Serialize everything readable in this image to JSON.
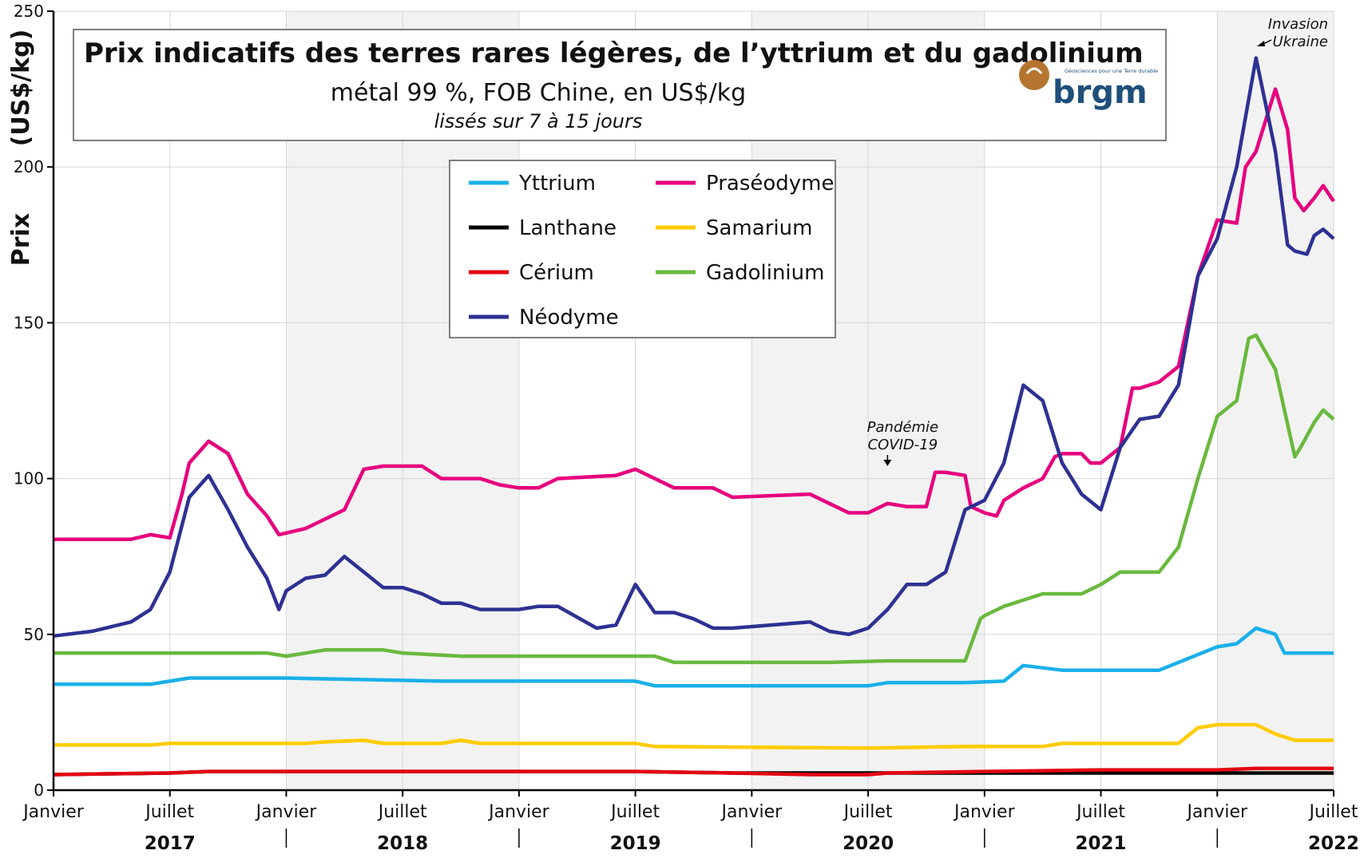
{
  "colors": {
    "Yttrium": "#1ab0ea",
    "Praséodyme": "#e6007e",
    "Lanthane": "#000000",
    "Samarium": "#ffcc00",
    "Cérium": "#e30613",
    "Gadolinium": "#6ab93e",
    "Néodyme": "#2e3192",
    "shade": "#f2f2f2",
    "grid": "#d6d6d6",
    "logo_brown": "#b5752e",
    "logo_blue": "#1d4f7a"
  },
  "logo": {
    "text": "brgm",
    "tagline": "Géosciences pour une Terre durable"
  },
  "chart_data": {
    "type": "line",
    "title": "Prix indicatifs des terres rares légères, de l’yttrium et du gadolinium",
    "subtitle": "métal 99 %, FOB Chine, en US$/kg",
    "note": "lissés sur 7 à 15 jours",
    "ylabel": "Prix",
    "ylabel_unit": "(US$/kg)",
    "ylim": [
      0,
      250
    ],
    "yticks": [
      0,
      50,
      100,
      150,
      200,
      250
    ],
    "xlim": [
      "2017-01",
      "2022-07"
    ],
    "xtick_labels": [
      "Janvier",
      "Juillet",
      "Janvier",
      "Juillet",
      "Janvier",
      "Juillet",
      "Janvier",
      "Juillet",
      "Janvier",
      "Juillet",
      "Janvier",
      "Juillet"
    ],
    "year_labels": [
      "2017",
      "2018",
      "2019",
      "2020",
      "2021",
      "2022"
    ],
    "grid": true,
    "legend_position": "top-center",
    "annotations": [
      {
        "text": [
          "Pandémie",
          "COVID-19"
        ],
        "x": "2020-08"
      },
      {
        "text": [
          "Invasion",
          "Ukraine"
        ],
        "x": "2022-02-24"
      }
    ],
    "series": [
      {
        "name": "Yttrium",
        "points": [
          [
            "2017-01",
            34
          ],
          [
            "2017-06",
            34
          ],
          [
            "2017-07",
            35
          ],
          [
            "2017-08",
            36
          ],
          [
            "2018-01",
            36
          ],
          [
            "2018-09",
            35
          ],
          [
            "2019-07",
            35
          ],
          [
            "2019-08",
            33.5
          ],
          [
            "2020-07",
            33.5
          ],
          [
            "2020-08",
            34.5
          ],
          [
            "2020-12",
            34.5
          ],
          [
            "2021-02",
            35
          ],
          [
            "2021-03",
            40
          ],
          [
            "2021-05",
            38.5
          ],
          [
            "2021-10",
            38.5
          ],
          [
            "2021-11",
            41
          ],
          [
            "2022-01",
            46
          ],
          [
            "2022-02",
            47
          ],
          [
            "2022-03",
            52
          ],
          [
            "2022-04",
            50
          ],
          [
            "2022-04-15",
            44
          ],
          [
            "2022-07",
            44
          ]
        ]
      },
      {
        "name": "Praséodyme",
        "points": [
          [
            "2017-01",
            80.5
          ],
          [
            "2017-05",
            80.5
          ],
          [
            "2017-06",
            82
          ],
          [
            "2017-07",
            81
          ],
          [
            "2017-07-20",
            95
          ],
          [
            "2017-08",
            105
          ],
          [
            "2017-09",
            112
          ],
          [
            "2017-10",
            108
          ],
          [
            "2017-11",
            95
          ],
          [
            "2017-12",
            88
          ],
          [
            "2017-12-20",
            82
          ],
          [
            "2018-02",
            84
          ],
          [
            "2018-03",
            87
          ],
          [
            "2018-04",
            90
          ],
          [
            "2018-05",
            103
          ],
          [
            "2018-06",
            104
          ],
          [
            "2018-08",
            104
          ],
          [
            "2018-09",
            100
          ],
          [
            "2018-11",
            100
          ],
          [
            "2018-12",
            98
          ],
          [
            "2019-01",
            97
          ],
          [
            "2019-02",
            97
          ],
          [
            "2019-03",
            100
          ],
          [
            "2019-06",
            101
          ],
          [
            "2019-07",
            103
          ],
          [
            "2019-09",
            97
          ],
          [
            "2019-11",
            97
          ],
          [
            "2019-12",
            94
          ],
          [
            "2020-04",
            95
          ],
          [
            "2020-05",
            92
          ],
          [
            "2020-06",
            89
          ],
          [
            "2020-07",
            89
          ],
          [
            "2020-08",
            92
          ],
          [
            "2020-09",
            91
          ],
          [
            "2020-10",
            91
          ],
          [
            "2020-10-15",
            102
          ],
          [
            "2020-11",
            102
          ],
          [
            "2020-12",
            101
          ],
          [
            "2020-12-10",
            91
          ],
          [
            "2021-01",
            89
          ],
          [
            "2021-01-20",
            88
          ],
          [
            "2021-02",
            93
          ],
          [
            "2021-03",
            97
          ],
          [
            "2021-04",
            100
          ],
          [
            "2021-04-20",
            107
          ],
          [
            "2021-05",
            108
          ],
          [
            "2021-06",
            108
          ],
          [
            "2021-06-15",
            105
          ],
          [
            "2021-07",
            105
          ],
          [
            "2021-08",
            110
          ],
          [
            "2021-08-20",
            129
          ],
          [
            "2021-09",
            129
          ],
          [
            "2021-10",
            131
          ],
          [
            "2021-11",
            136
          ],
          [
            "2021-12",
            165
          ],
          [
            "2022-01",
            183
          ],
          [
            "2022-02",
            182
          ],
          [
            "2022-02-15",
            200
          ],
          [
            "2022-03",
            205
          ],
          [
            "2022-04",
            225
          ],
          [
            "2022-04-20",
            212
          ],
          [
            "2022-05",
            190
          ],
          [
            "2022-05-15",
            186
          ],
          [
            "2022-06",
            190
          ],
          [
            "2022-06-15",
            194
          ],
          [
            "2022-07",
            189
          ]
        ]
      },
      {
        "name": "Lanthane",
        "points": [
          [
            "2017-01",
            5
          ],
          [
            "2017-07",
            5.5
          ],
          [
            "2017-09",
            6
          ],
          [
            "2017-12",
            6
          ],
          [
            "2018-06",
            6
          ],
          [
            "2019-01",
            6
          ],
          [
            "2019-07",
            6
          ],
          [
            "2019-12",
            5.5
          ],
          [
            "2020-12",
            5.5
          ],
          [
            "2022-07",
            5.5
          ]
        ]
      },
      {
        "name": "Samarium",
        "points": [
          [
            "2017-01",
            14.5
          ],
          [
            "2017-06",
            14.5
          ],
          [
            "2017-07",
            15
          ],
          [
            "2018-02",
            15
          ],
          [
            "2018-03",
            15.5
          ],
          [
            "2018-05",
            16
          ],
          [
            "2018-06",
            15
          ],
          [
            "2018-09",
            15
          ],
          [
            "2018-10",
            16
          ],
          [
            "2018-11",
            15
          ],
          [
            "2019-07",
            15
          ],
          [
            "2019-08",
            14
          ],
          [
            "2020-07",
            13.5
          ],
          [
            "2020-12",
            14
          ],
          [
            "2021-04",
            14
          ],
          [
            "2021-05",
            15
          ],
          [
            "2021-11",
            15
          ],
          [
            "2021-12",
            20
          ],
          [
            "2022-01",
            21
          ],
          [
            "2022-03",
            21
          ],
          [
            "2022-04",
            18
          ],
          [
            "2022-05",
            16
          ],
          [
            "2022-07",
            16
          ]
        ]
      },
      {
        "name": "Cérium",
        "points": [
          [
            "2017-01",
            5
          ],
          [
            "2017-07",
            5.5
          ],
          [
            "2017-09",
            6
          ],
          [
            "2017-12",
            6
          ],
          [
            "2018-06",
            6
          ],
          [
            "2019-01",
            6
          ],
          [
            "2019-07",
            6
          ],
          [
            "2019-12",
            5.5
          ],
          [
            "2020-04",
            5
          ],
          [
            "2020-07",
            5
          ],
          [
            "2020-08",
            5.5
          ],
          [
            "2021-01",
            6
          ],
          [
            "2021-07",
            6.5
          ],
          [
            "2022-01",
            6.5
          ],
          [
            "2022-03",
            7
          ],
          [
            "2022-07",
            7
          ]
        ]
      },
      {
        "name": "Gadolinium",
        "points": [
          [
            "2017-01",
            44
          ],
          [
            "2017-12",
            44
          ],
          [
            "2018-01",
            43
          ],
          [
            "2018-02",
            44
          ],
          [
            "2018-03",
            45
          ],
          [
            "2018-06",
            45
          ],
          [
            "2018-07",
            44
          ],
          [
            "2018-10",
            43
          ],
          [
            "2019-08",
            43
          ],
          [
            "2019-09",
            41
          ],
          [
            "2020-05",
            41
          ],
          [
            "2020-08",
            41.5
          ],
          [
            "2020-12",
            41.5
          ],
          [
            "2020-12-25",
            55
          ],
          [
            "2021-01",
            56
          ],
          [
            "2021-02",
            59
          ],
          [
            "2021-04",
            63
          ],
          [
            "2021-06",
            63
          ],
          [
            "2021-07",
            66
          ],
          [
            "2021-08",
            70
          ],
          [
            "2021-10",
            70
          ],
          [
            "2021-11",
            78
          ],
          [
            "2021-12",
            100
          ],
          [
            "2022-01",
            120
          ],
          [
            "2022-02",
            125
          ],
          [
            "2022-02-20",
            145
          ],
          [
            "2022-03",
            146
          ],
          [
            "2022-04",
            135
          ],
          [
            "2022-05",
            107
          ],
          [
            "2022-05-10",
            110
          ],
          [
            "2022-06",
            118
          ],
          [
            "2022-06-15",
            122
          ],
          [
            "2022-07",
            119
          ]
        ]
      },
      {
        "name": "Néodyme",
        "points": [
          [
            "2017-01",
            49.5
          ],
          [
            "2017-03",
            51
          ],
          [
            "2017-05",
            54
          ],
          [
            "2017-06",
            58
          ],
          [
            "2017-07",
            70
          ],
          [
            "2017-08",
            94
          ],
          [
            "2017-09",
            101
          ],
          [
            "2017-10",
            90
          ],
          [
            "2017-11",
            78
          ],
          [
            "2017-12",
            68
          ],
          [
            "2017-12-20",
            58
          ],
          [
            "2018-01",
            64
          ],
          [
            "2018-02",
            68
          ],
          [
            "2018-03",
            69
          ],
          [
            "2018-04",
            75
          ],
          [
            "2018-05",
            70
          ],
          [
            "2018-06",
            65
          ],
          [
            "2018-07",
            65
          ],
          [
            "2018-08",
            63
          ],
          [
            "2018-09",
            60
          ],
          [
            "2018-10",
            60
          ],
          [
            "2018-11",
            58
          ],
          [
            "2019-01",
            58
          ],
          [
            "2019-02",
            59
          ],
          [
            "2019-03",
            59
          ],
          [
            "2019-05",
            52
          ],
          [
            "2019-06",
            53
          ],
          [
            "2019-07",
            66
          ],
          [
            "2019-08",
            57
          ],
          [
            "2019-09",
            57
          ],
          [
            "2019-10",
            55
          ],
          [
            "2019-11",
            52
          ],
          [
            "2019-12",
            52
          ],
          [
            "2020-02",
            53
          ],
          [
            "2020-04",
            54
          ],
          [
            "2020-05",
            51
          ],
          [
            "2020-06",
            50
          ],
          [
            "2020-07",
            52
          ],
          [
            "2020-08",
            58
          ],
          [
            "2020-09",
            66
          ],
          [
            "2020-10",
            66
          ],
          [
            "2020-11",
            70
          ],
          [
            "2020-12",
            90
          ],
          [
            "2021-01",
            93
          ],
          [
            "2021-02",
            105
          ],
          [
            "2021-03",
            130
          ],
          [
            "2021-04",
            125
          ],
          [
            "2021-05",
            105
          ],
          [
            "2021-06",
            95
          ],
          [
            "2021-07",
            90
          ],
          [
            "2021-08",
            110
          ],
          [
            "2021-09",
            119
          ],
          [
            "2021-10",
            120
          ],
          [
            "2021-11",
            130
          ],
          [
            "2021-12",
            165
          ],
          [
            "2022-01",
            177
          ],
          [
            "2022-02",
            200
          ],
          [
            "2022-03",
            235
          ],
          [
            "2022-04",
            205
          ],
          [
            "2022-04-20",
            175
          ],
          [
            "2022-05",
            173
          ],
          [
            "2022-05-20",
            172
          ],
          [
            "2022-06",
            178
          ],
          [
            "2022-06-15",
            180
          ],
          [
            "2022-07",
            177
          ]
        ]
      }
    ]
  }
}
